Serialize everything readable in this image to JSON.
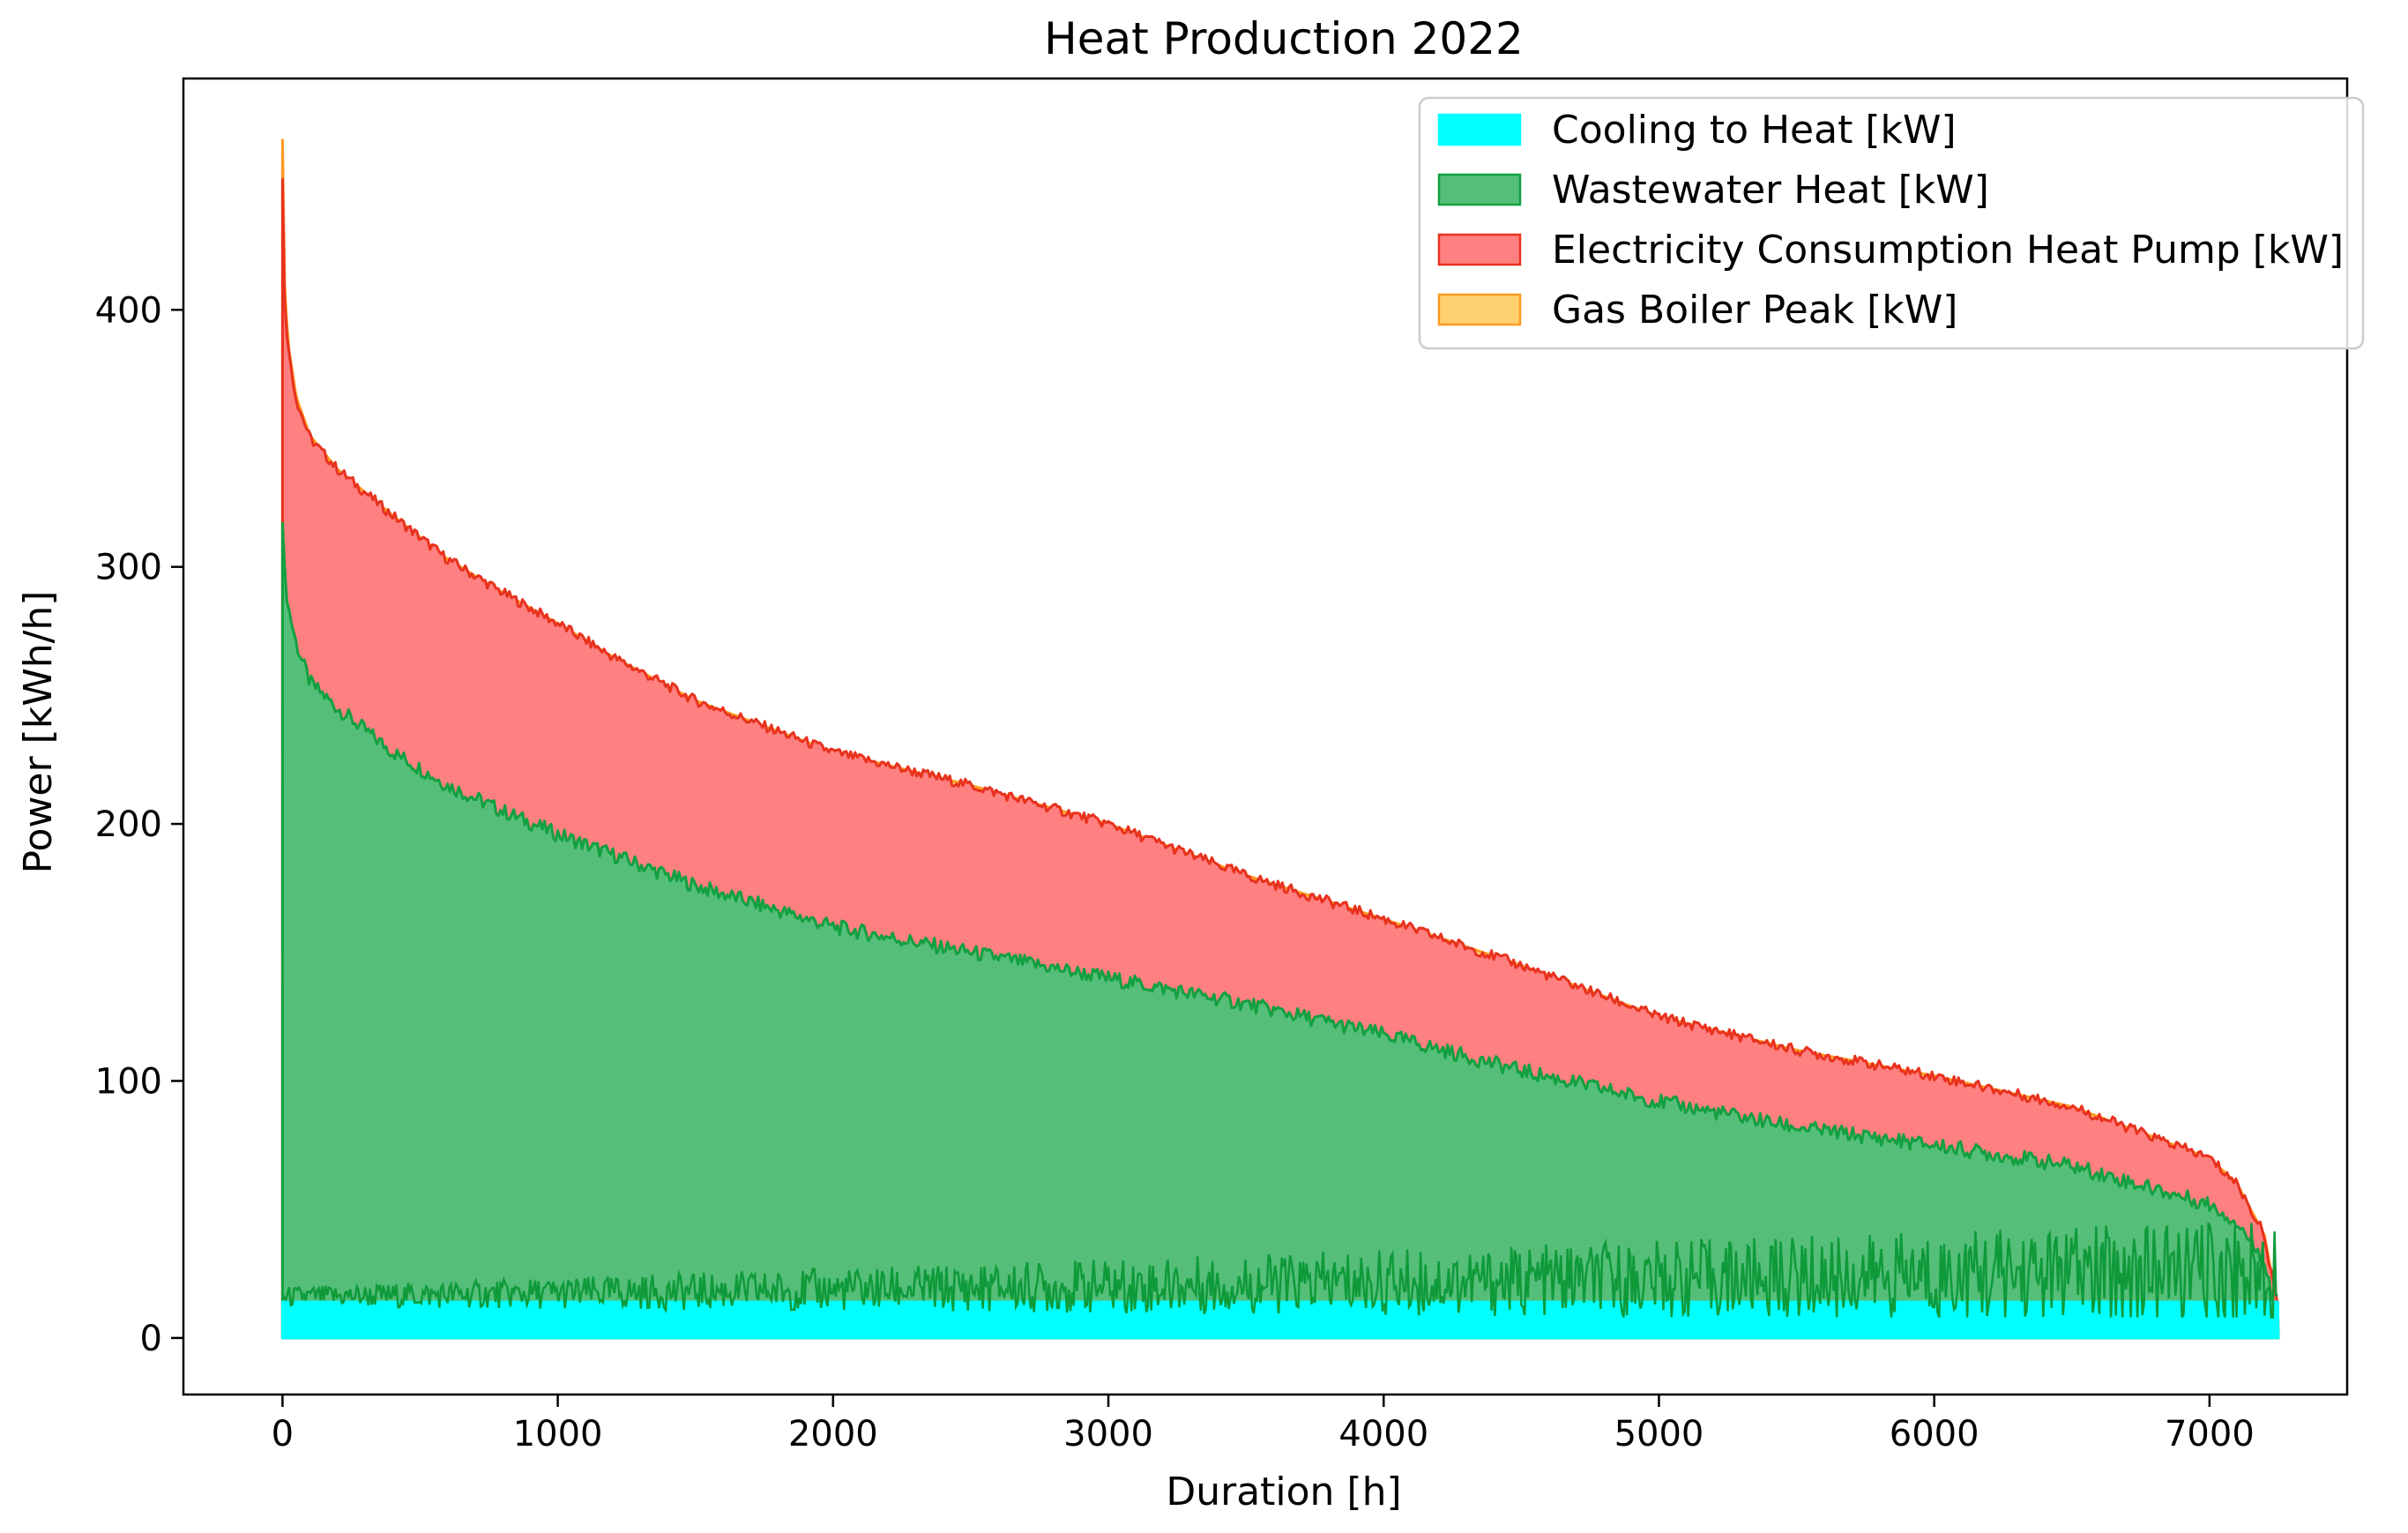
{
  "chart_data": {
    "type": "area",
    "title": "Heat Production 2022",
    "xlabel": "Duration [h]",
    "ylabel": "Power [kWh/h]",
    "xlim": [
      -360,
      7500
    ],
    "ylim": [
      -22,
      490
    ],
    "xticks": [
      0,
      1000,
      2000,
      3000,
      4000,
      5000,
      6000,
      7000
    ],
    "yticks": [
      0,
      100,
      200,
      300,
      400
    ],
    "grid": false,
    "legend_position": "top-right",
    "series": [
      {
        "name": "Cooling to Heat [kW]",
        "color": "#00ffff",
        "x": [
          0,
          1000,
          2000,
          3000,
          4000,
          5000,
          6000,
          7000,
          7250
        ],
        "values": [
          14,
          14,
          14,
          14,
          14,
          14,
          14,
          14,
          14
        ]
      },
      {
        "name": "Wastewater Heat [kW]",
        "color": "#1fa34a",
        "x": [
          0,
          5,
          20,
          50,
          100,
          200,
          400,
          600,
          800,
          1000,
          1200,
          1500,
          2000,
          2500,
          3000,
          3500,
          4000,
          4500,
          5000,
          5500,
          6000,
          6500,
          7000,
          7100,
          7200,
          7250
        ],
        "values": [
          320,
          300,
          285,
          270,
          255,
          245,
          228,
          215,
          205,
          196,
          188,
          176,
          160,
          150,
          140,
          130,
          118,
          104,
          92,
          82,
          75,
          67,
          52,
          45,
          30,
          5
        ]
      },
      {
        "name": "Electricity Consumption Heat Pump [kW]",
        "color": "#ff3b30",
        "x": [
          0,
          5,
          20,
          50,
          100,
          200,
          400,
          600,
          800,
          1000,
          1200,
          1500,
          2000,
          2500,
          3000,
          3500,
          4000,
          4500,
          5000,
          5500,
          6000,
          6500,
          7000,
          7100,
          7200,
          7250
        ],
        "values": [
          450,
          410,
          385,
          365,
          350,
          338,
          320,
          303,
          290,
          278,
          265,
          248,
          228,
          215,
          200,
          180,
          163,
          145,
          125,
          112,
          102,
          90,
          70,
          60,
          40,
          10
        ]
      },
      {
        "name": "Gas Boiler Peak [kW]",
        "color": "#ffb000",
        "x": [
          0,
          5,
          20,
          50,
          100,
          200,
          400,
          600,
          800,
          1000,
          1200,
          1500,
          2000,
          2500,
          3000,
          3500,
          4000,
          4500,
          5000,
          5500,
          6000,
          6500,
          7000,
          7100,
          7200,
          7250
        ],
        "values": [
          466,
          415,
          387,
          366,
          351,
          338,
          320,
          303,
          290,
          278,
          265,
          248,
          228,
          215,
          200,
          180,
          163,
          145,
          125,
          112,
          102,
          90,
          70,
          60,
          40,
          10
        ]
      }
    ]
  }
}
